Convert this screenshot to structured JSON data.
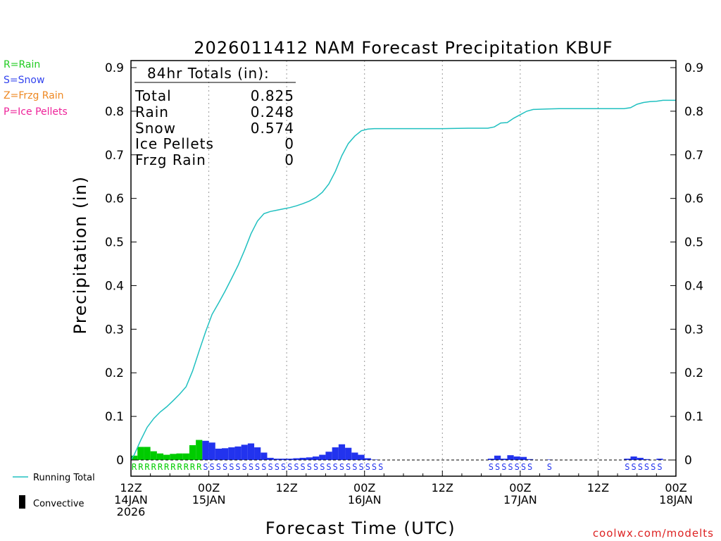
{
  "chart_data": {
    "type": "bar",
    "title": "2026011412 NAM Forecast Precipitation KBUF",
    "xlabel": "Forecast Time (UTC)",
    "ylabel": "Precipitation (in)",
    "ylim": [
      0,
      0.9
    ],
    "y_ticks": [
      "0",
      "0.1",
      "0.2",
      "0.3",
      "0.4",
      "0.5",
      "0.6",
      "0.7",
      "0.8",
      "0.9"
    ],
    "xlim": [
      0,
      84
    ],
    "x_ticks": [
      {
        "x": 0,
        "l1": "12Z",
        "l2": "14JAN",
        "l3": "2026"
      },
      {
        "x": 12,
        "l1": "00Z",
        "l2": "15JAN",
        "l3": ""
      },
      {
        "x": 24,
        "l1": "12Z",
        "l2": "",
        "l3": ""
      },
      {
        "x": 36,
        "l1": "00Z",
        "l2": "16JAN",
        "l3": ""
      },
      {
        "x": 48,
        "l1": "12Z",
        "l2": "",
        "l3": ""
      },
      {
        "x": 60,
        "l1": "00Z",
        "l2": "17JAN",
        "l3": ""
      },
      {
        "x": 72,
        "l1": "12Z",
        "l2": "",
        "l3": ""
      },
      {
        "x": 84,
        "l1": "00Z",
        "l2": "18JAN",
        "l3": ""
      }
    ],
    "grid_x": [
      12,
      24,
      36,
      48,
      60,
      72
    ],
    "rain_color": "#00cc00",
    "snow_color": "#2233ee",
    "running_color": "#20c0c0",
    "precip_bars": [
      {
        "x": 0.5,
        "v": 0.01,
        "t": "rain"
      },
      {
        "x": 1.5,
        "v": 0.03,
        "t": "rain"
      },
      {
        "x": 2.5,
        "v": 0.03,
        "t": "rain"
      },
      {
        "x": 3.5,
        "v": 0.02,
        "t": "rain"
      },
      {
        "x": 4.5,
        "v": 0.015,
        "t": "rain"
      },
      {
        "x": 5.5,
        "v": 0.012,
        "t": "rain"
      },
      {
        "x": 6.5,
        "v": 0.014,
        "t": "rain"
      },
      {
        "x": 7.5,
        "v": 0.015,
        "t": "rain"
      },
      {
        "x": 8.5,
        "v": 0.015,
        "t": "rain"
      },
      {
        "x": 9.5,
        "v": 0.034,
        "t": "rain"
      },
      {
        "x": 10.5,
        "v": 0.046,
        "t": "rain"
      },
      {
        "x": 11.5,
        "v": 0.044,
        "t": "snow"
      },
      {
        "x": 12.5,
        "v": 0.04,
        "t": "snow"
      },
      {
        "x": 13.5,
        "v": 0.026,
        "t": "snow"
      },
      {
        "x": 14.5,
        "v": 0.027,
        "t": "snow"
      },
      {
        "x": 15.5,
        "v": 0.029,
        "t": "snow"
      },
      {
        "x": 16.5,
        "v": 0.031,
        "t": "snow"
      },
      {
        "x": 17.5,
        "v": 0.035,
        "t": "snow"
      },
      {
        "x": 18.5,
        "v": 0.038,
        "t": "snow"
      },
      {
        "x": 19.5,
        "v": 0.029,
        "t": "snow"
      },
      {
        "x": 20.5,
        "v": 0.017,
        "t": "snow"
      },
      {
        "x": 21.5,
        "v": 0.005,
        "t": "snow"
      },
      {
        "x": 22.5,
        "v": 0.003,
        "t": "snow"
      },
      {
        "x": 23.5,
        "v": 0.003,
        "t": "snow"
      },
      {
        "x": 24.5,
        "v": 0.003,
        "t": "snow"
      },
      {
        "x": 25.5,
        "v": 0.004,
        "t": "snow"
      },
      {
        "x": 26.5,
        "v": 0.005,
        "t": "snow"
      },
      {
        "x": 27.5,
        "v": 0.006,
        "t": "snow"
      },
      {
        "x": 28.5,
        "v": 0.008,
        "t": "snow"
      },
      {
        "x": 29.5,
        "v": 0.012,
        "t": "snow"
      },
      {
        "x": 30.5,
        "v": 0.019,
        "t": "snow"
      },
      {
        "x": 31.5,
        "v": 0.029,
        "t": "snow"
      },
      {
        "x": 32.5,
        "v": 0.036,
        "t": "snow"
      },
      {
        "x": 33.5,
        "v": 0.028,
        "t": "snow"
      },
      {
        "x": 34.5,
        "v": 0.017,
        "t": "snow"
      },
      {
        "x": 35.5,
        "v": 0.012,
        "t": "snow"
      },
      {
        "x": 36.5,
        "v": 0.004,
        "t": "snow"
      },
      {
        "x": 37.5,
        "v": 0.001,
        "t": "snow"
      },
      {
        "x": 55.5,
        "v": 0.003,
        "t": "snow"
      },
      {
        "x": 56.5,
        "v": 0.01,
        "t": "snow"
      },
      {
        "x": 57.5,
        "v": 0.003,
        "t": "snow"
      },
      {
        "x": 58.5,
        "v": 0.011,
        "t": "snow"
      },
      {
        "x": 59.5,
        "v": 0.008,
        "t": "snow"
      },
      {
        "x": 60.5,
        "v": 0.007,
        "t": "snow"
      },
      {
        "x": 61.5,
        "v": 0.002,
        "t": "snow"
      },
      {
        "x": 64.5,
        "v": 0.001,
        "t": "snow"
      },
      {
        "x": 76.5,
        "v": 0.003,
        "t": "snow"
      },
      {
        "x": 77.5,
        "v": 0.008,
        "t": "snow"
      },
      {
        "x": 78.5,
        "v": 0.005,
        "t": "snow"
      },
      {
        "x": 79.5,
        "v": 0.002,
        "t": "snow"
      },
      {
        "x": 81.5,
        "v": 0.003,
        "t": "snow"
      }
    ],
    "running_total": {
      "x": [
        0,
        0.5,
        1.5,
        2.5,
        3.5,
        4.5,
        5.5,
        6.5,
        7.5,
        8.5,
        9.5,
        10.5,
        11.5,
        12.5,
        13.5,
        14.5,
        15.5,
        16.5,
        17.5,
        18.5,
        19.5,
        20.5,
        21.5,
        22.5,
        23.5,
        24.5,
        25.5,
        26.5,
        27.5,
        28.5,
        29.5,
        30.5,
        31.5,
        32.5,
        33.5,
        34.5,
        35.5,
        36.5,
        37.5,
        38,
        48,
        52,
        55,
        56,
        57,
        58,
        59,
        60,
        61,
        62,
        64,
        66,
        72,
        76,
        77,
        78,
        79,
        80,
        81,
        82,
        84
      ],
      "y": [
        0,
        0.012,
        0.045,
        0.075,
        0.095,
        0.11,
        0.122,
        0.136,
        0.151,
        0.168,
        0.204,
        0.25,
        0.294,
        0.334,
        0.36,
        0.387,
        0.416,
        0.446,
        0.481,
        0.519,
        0.548,
        0.565,
        0.57,
        0.573,
        0.576,
        0.579,
        0.583,
        0.588,
        0.594,
        0.602,
        0.614,
        0.633,
        0.662,
        0.698,
        0.726,
        0.743,
        0.755,
        0.759,
        0.76,
        0.76,
        0.76,
        0.761,
        0.761,
        0.764,
        0.773,
        0.774,
        0.784,
        0.792,
        0.8,
        0.804,
        0.805,
        0.806,
        0.806,
        0.806,
        0.808,
        0.816,
        0.82,
        0.822,
        0.823,
        0.825,
        0.825
      ]
    },
    "ptype_row": [
      {
        "x0": 0,
        "letters": "RRRRRRRRRRR",
        "t": "rain"
      },
      {
        "x0": 11,
        "letters": "SSSSSSSSSSSSSSSSSSSSSSSSSSSS",
        "t": "snow"
      },
      {
        "x0": 55,
        "letters": "SSSSSSS",
        "t": "snow"
      },
      {
        "x0": 64,
        "letters": "S",
        "t": "snow"
      },
      {
        "x0": 76,
        "letters": "SSSSSS",
        "t": "snow"
      }
    ]
  },
  "totals_box": {
    "header": "84hr Totals (in):",
    "rows": [
      {
        "label": "Total",
        "value": "0.825"
      },
      {
        "label": "Rain",
        "value": "0.248"
      },
      {
        "label": "Snow",
        "value": "0.574"
      },
      {
        "label": "Ice Pellets",
        "value": "0"
      },
      {
        "label": "Frzg Rain",
        "value": "0"
      }
    ]
  },
  "ptype_legend": [
    {
      "text": "R=Rain",
      "color": "#22cc22"
    },
    {
      "text": "S=Snow",
      "color": "#3344ee"
    },
    {
      "text": "Z=Frzg Rain",
      "color": "#ee8822"
    },
    {
      "text": "P=Ice Pellets",
      "color": "#ee2299"
    }
  ],
  "line_legend": {
    "running_total": "Running Total",
    "convective": "Convective"
  },
  "credit": "coolwx.com/modelts"
}
